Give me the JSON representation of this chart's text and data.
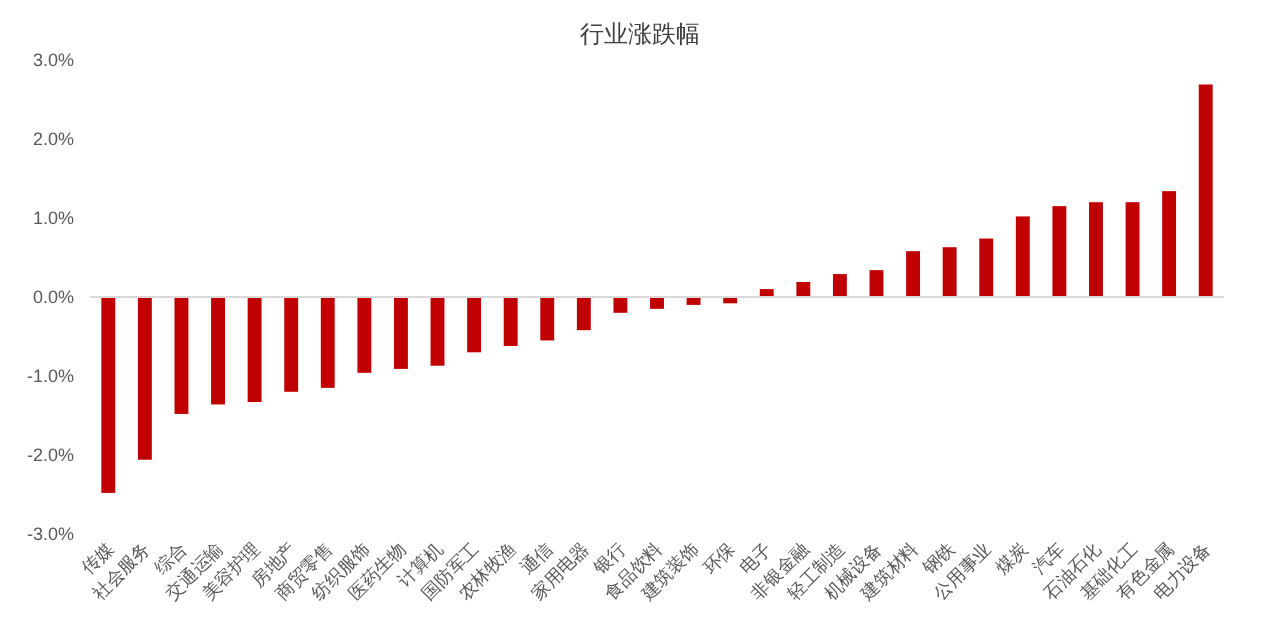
{
  "chart_data": {
    "type": "bar",
    "title": "行业涨跌幅",
    "categories": [
      "传媒",
      "社会服务",
      "综合",
      "交通运输",
      "美容护理",
      "房地产",
      "商贸零售",
      "纺织服饰",
      "医药生物",
      "计算机",
      "国防军工",
      "农林牧渔",
      "通信",
      "家用电器",
      "银行",
      "食品饮料",
      "建筑装饰",
      "环保",
      "电子",
      "非银金融",
      "轻工制造",
      "机械设备",
      "建筑材料",
      "钢铁",
      "公用事业",
      "煤炭",
      "汽车",
      "石油石化",
      "基础化工",
      "有色金属",
      "电力设备"
    ],
    "values": [
      -2.48,
      -2.06,
      -1.48,
      -1.36,
      -1.33,
      -1.2,
      -1.15,
      -0.96,
      -0.91,
      -0.87,
      -0.7,
      -0.62,
      -0.55,
      -0.42,
      -0.2,
      -0.15,
      -0.1,
      -0.08,
      0.1,
      0.19,
      0.29,
      0.34,
      0.58,
      0.63,
      0.74,
      1.02,
      1.15,
      1.2,
      1.2,
      1.34,
      2.69
    ],
    "color": "#c00000",
    "ylim": [
      -3,
      3
    ],
    "yticks": [
      {
        "value": -3,
        "label": "-3.0%"
      },
      {
        "value": -2,
        "label": "-2.0%"
      },
      {
        "value": -1,
        "label": "-1.0%"
      },
      {
        "value": 0,
        "label": "0.0%"
      },
      {
        "value": 1,
        "label": "1.0%"
      },
      {
        "value": 2,
        "label": "2.0%"
      },
      {
        "value": 3,
        "label": "3.0%"
      }
    ],
    "data_labels": false
  }
}
